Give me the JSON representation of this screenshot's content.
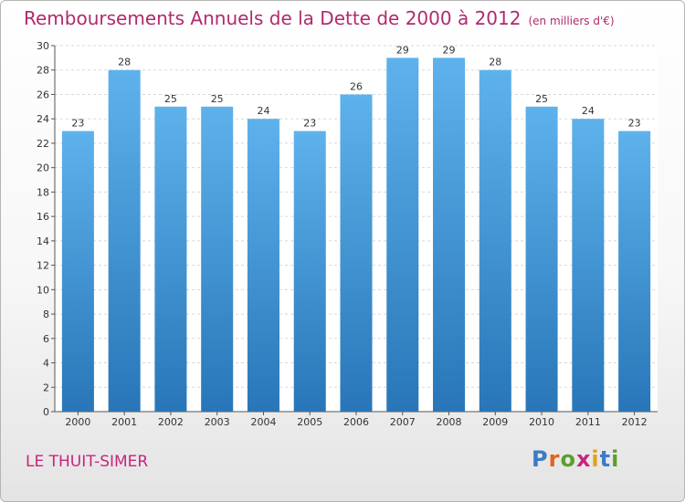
{
  "header": {
    "title": "Remboursements Annuels de la Dette de 2000 à 2012",
    "unit": "(en milliers d'€)"
  },
  "footer": {
    "city": "LE THUIT-SIMER",
    "logo": {
      "letters": [
        "P",
        "r",
        "o",
        "x",
        "i",
        "t",
        "i"
      ],
      "colors": [
        "#3b7dc4",
        "#e0641c",
        "#5aa02c",
        "#c8257f",
        "#e0a21c",
        "#3b7dc4",
        "#5aa02c"
      ]
    }
  },
  "chart_data": {
    "type": "bar",
    "title": "Remboursements Annuels de la Dette de 2000 à 2012",
    "subtitle": "(en milliers d'€)",
    "categories": [
      "2000",
      "2001",
      "2002",
      "2003",
      "2004",
      "2005",
      "2006",
      "2007",
      "2008",
      "2009",
      "2010",
      "2011",
      "2012"
    ],
    "values": [
      23,
      28,
      25,
      25,
      24,
      23,
      26,
      29,
      29,
      28,
      25,
      24,
      23
    ],
    "ylim": [
      0,
      30
    ],
    "yticks": [
      0,
      2,
      4,
      6,
      8,
      10,
      12,
      14,
      16,
      18,
      20,
      22,
      24,
      26,
      28,
      30
    ],
    "grid": true,
    "bar_color": "#4a9ad8"
  }
}
